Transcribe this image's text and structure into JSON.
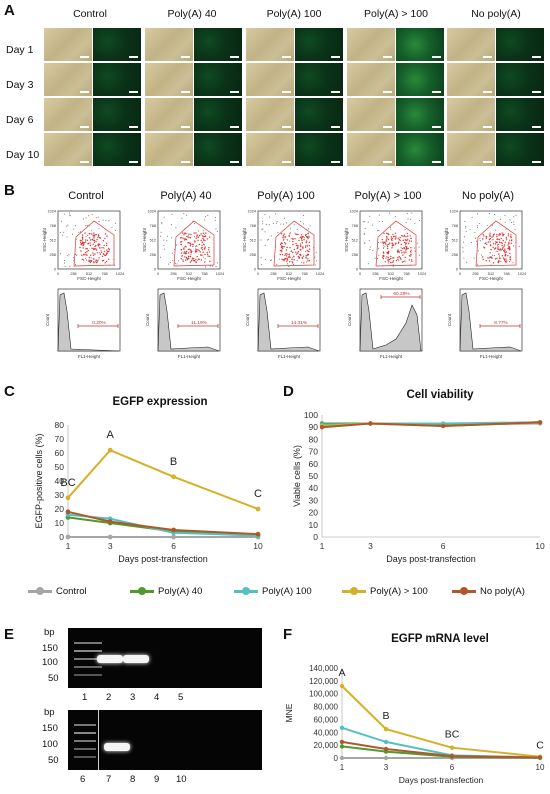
{
  "panels": {
    "a": "A",
    "b": "B",
    "c": "C",
    "d": "D",
    "e": "E",
    "f": "F"
  },
  "panel_a": {
    "columns": [
      "Control",
      "Poly(A) 40",
      "Poly(A) 100",
      "Poly(A) > 100",
      "No poly(A)"
    ],
    "rows": [
      "Day 1",
      "Day 3",
      "Day 6",
      "Day 10"
    ]
  },
  "panel_b": {
    "columns": [
      "Control",
      "Poly(A) 40",
      "Poly(A) 100",
      "Poly(A) > 100",
      "No poly(A)"
    ],
    "scatter_xlabel": "FSC-Height",
    "scatter_ylabel": "SSC-Height",
    "scatter_ticks": [
      "0",
      "256",
      "512",
      "768",
      "1024"
    ],
    "hist_xlabel": "FL1-Height",
    "hist_ylabel": "Count",
    "percentages": [
      "0.20%",
      "11.19%",
      "14.31%",
      "60.29%",
      "8.77%"
    ]
  },
  "chart_data": [
    {
      "type": "line",
      "title": "EGFP expression",
      "xlabel": "Days post-transfection",
      "ylabel": "EGFP-positive cells (%)",
      "x": [
        1,
        3,
        6,
        10
      ],
      "ylim": [
        0,
        80
      ],
      "yticks": [
        0,
        10,
        20,
        30,
        40,
        50,
        60,
        70,
        80
      ],
      "series": [
        {
          "name": "Control",
          "values": [
            0,
            0,
            0,
            0
          ]
        },
        {
          "name": "Poly(A) 40",
          "values": [
            14,
            10,
            4,
            1
          ]
        },
        {
          "name": "Poly(A) 100",
          "values": [
            16,
            13,
            3,
            1
          ]
        },
        {
          "name": "Poly(A) > 100",
          "values": [
            28,
            62,
            43,
            20
          ]
        },
        {
          "name": "No poly(A)",
          "values": [
            18,
            11,
            5,
            2
          ]
        }
      ],
      "annotations": [
        "BC",
        "A",
        "B",
        "C"
      ]
    },
    {
      "type": "line",
      "title": "Cell viability",
      "xlabel": "Days post-transfection",
      "ylabel": "Viable cells (%)",
      "x": [
        1,
        3,
        6,
        10
      ],
      "ylim": [
        0,
        100
      ],
      "yticks": [
        0,
        10,
        20,
        30,
        40,
        50,
        60,
        70,
        80,
        90,
        100
      ],
      "series": [
        {
          "name": "Control",
          "values": [
            92,
            93,
            92,
            93
          ]
        },
        {
          "name": "Poly(A) 40",
          "values": [
            93,
            93,
            92,
            94
          ]
        },
        {
          "name": "Poly(A) 100",
          "values": [
            92,
            93,
            93,
            94
          ]
        },
        {
          "name": "Poly(A) > 100",
          "values": [
            91,
            93,
            91,
            94
          ]
        },
        {
          "name": "No poly(A)",
          "values": [
            90,
            93,
            91,
            94
          ]
        }
      ]
    },
    {
      "type": "line",
      "title": "EGFP mRNA level",
      "xlabel": "Days post-transfection",
      "ylabel": "MNE",
      "x": [
        1,
        3,
        6,
        10
      ],
      "ylim": [
        0,
        140000
      ],
      "yticks": [
        "0",
        "20,000",
        "40,000",
        "60,000",
        "80,000",
        "100,000",
        "120,000",
        "140,000"
      ],
      "series": [
        {
          "name": "Control",
          "values": [
            0,
            0,
            0,
            0
          ]
        },
        {
          "name": "Poly(A) 40",
          "values": [
            18000,
            10000,
            2000,
            500
          ]
        },
        {
          "name": "Poly(A) 100",
          "values": [
            47000,
            25000,
            4000,
            1000
          ]
        },
        {
          "name": "Poly(A) > 100",
          "values": [
            112000,
            45000,
            16000,
            2000
          ]
        },
        {
          "name": "No poly(A)",
          "values": [
            25000,
            14000,
            3000,
            800
          ]
        }
      ],
      "annotations": [
        "A",
        "B",
        "BC",
        "C"
      ]
    }
  ],
  "legend": [
    "Control",
    "Poly(A) 40",
    "Poly(A) 100",
    "Poly(A) > 100",
    "No poly(A)"
  ],
  "colors": {
    "Control": "#a6a6a6",
    "Poly(A) 40": "#4e9a2f",
    "Poly(A) 100": "#55c0c0",
    "Poly(A) > 100": "#d4b12a",
    "No poly(A)": "#b0582a"
  },
  "panel_e": {
    "unit": "bp",
    "markers": [
      "150",
      "100",
      "50"
    ],
    "lanes_top": [
      "1",
      "2",
      "3",
      "4",
      "5"
    ],
    "lanes_bottom": [
      "6",
      "7",
      "8",
      "9",
      "10"
    ]
  }
}
